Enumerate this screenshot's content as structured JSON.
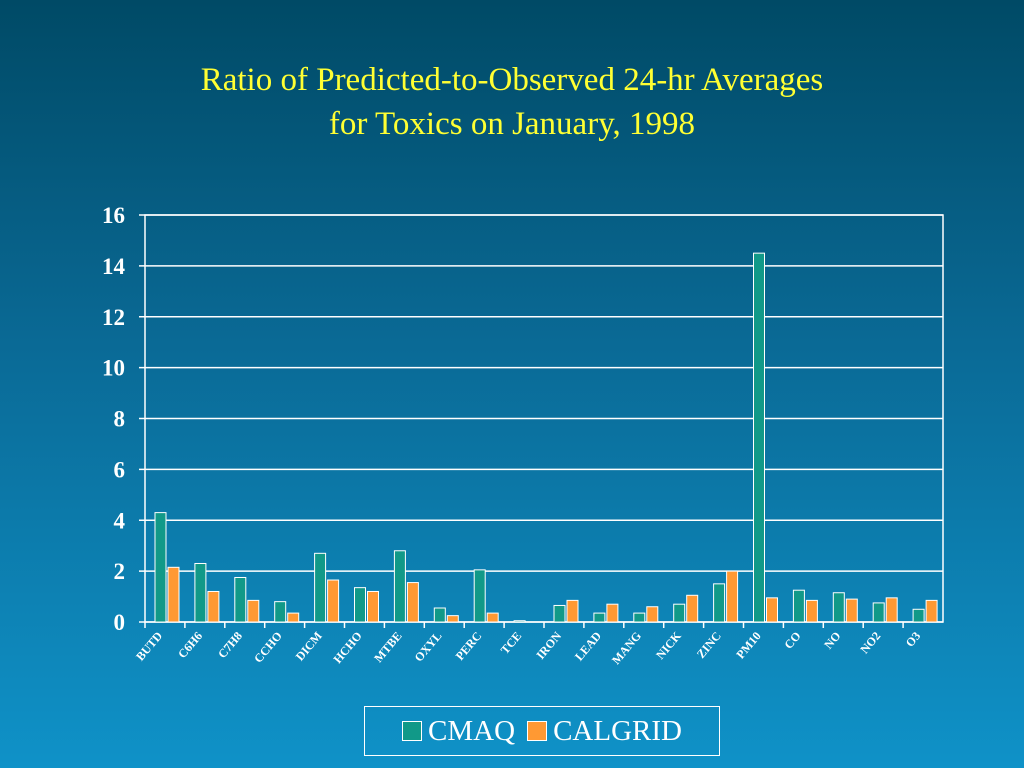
{
  "title_lines": [
    "Ratio of Predicted-to-Observed 24-hr Averages",
    "for Toxics on January, 1998"
  ],
  "colors": {
    "title": "#ffff33",
    "axis": "#ffffff",
    "cmaq": "#119988",
    "calgrid": "#ff9933"
  },
  "chart_data": {
    "type": "bar",
    "title": "Ratio of Predicted-to-Observed 24-hr Averages for Toxics on January, 1998",
    "xlabel": "",
    "ylabel": "",
    "ylim": [
      0,
      16
    ],
    "yticks": [
      0,
      2,
      4,
      6,
      8,
      10,
      12,
      14,
      16
    ],
    "grid": "horizontal",
    "legend": "bottom",
    "categories": [
      "BUTD",
      "C6H6",
      "C7H8",
      "CCHO",
      "DICM",
      "HCHO",
      "MTBE",
      "OXYL",
      "PERC",
      "TCE",
      "IRON",
      "LEAD",
      "MANG",
      "NICK",
      "ZINC",
      "PM10",
      "CO",
      "NO",
      "NO2",
      "O3"
    ],
    "series": [
      {
        "name": "CMAQ",
        "values": [
          4.3,
          2.3,
          1.75,
          0.8,
          2.7,
          1.35,
          2.8,
          0.55,
          2.05,
          0.05,
          0.65,
          0.35,
          0.35,
          0.7,
          1.5,
          14.5,
          1.25,
          1.15,
          0.75,
          0.5
        ]
      },
      {
        "name": "CALGRID",
        "values": [
          2.15,
          1.2,
          0.85,
          0.35,
          1.65,
          1.2,
          1.55,
          0.25,
          0.35,
          0.0,
          0.85,
          0.7,
          0.6,
          1.05,
          2.0,
          0.95,
          0.85,
          0.9,
          0.95,
          0.85
        ]
      }
    ]
  }
}
